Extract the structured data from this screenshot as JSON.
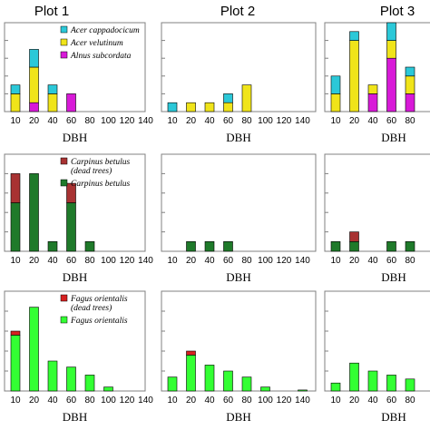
{
  "plot_titles": [
    "Plot 1",
    "Plot 2",
    "Plot 3"
  ],
  "colors": {
    "acer_cappadocicum": "#2bc8d8",
    "acer_velutinum": "#f0e41a",
    "alnus_subcordata": "#d81ad8",
    "carpinus_dead": "#a83232",
    "carpinus": "#1f7a2a",
    "fagus_dead": "#d62020",
    "fagus": "#33ff33"
  },
  "chart_data": [
    {
      "type": "bar",
      "stacked": true,
      "row": 0,
      "col": 0,
      "title": "Plot 1",
      "xlabel": "DBH",
      "categories": [
        "10",
        "20",
        "40",
        "60",
        "80",
        "100",
        "120",
        "140"
      ],
      "ylim": [
        0,
        10
      ],
      "legend": {
        "position": "top-right",
        "entries": [
          "Acer cappadocicum",
          "Acer velutinum",
          "Alnus subcordata"
        ]
      },
      "series": [
        {
          "name": "Alnus subcordata",
          "color_key": "alnus_subcordata",
          "values": [
            0,
            1,
            0,
            2,
            0,
            0,
            0,
            0
          ]
        },
        {
          "name": "Acer velutinum",
          "color_key": "acer_velutinum",
          "values": [
            2,
            4,
            2,
            0,
            0,
            0,
            0,
            0
          ]
        },
        {
          "name": "Acer cappadocicum",
          "color_key": "acer_cappadocicum",
          "values": [
            1,
            2,
            1,
            0,
            0,
            0,
            0,
            0
          ]
        }
      ]
    },
    {
      "type": "bar",
      "stacked": true,
      "row": 0,
      "col": 1,
      "title": "Plot 2",
      "xlabel": "DBH",
      "categories": [
        "10",
        "20",
        "40",
        "60",
        "80",
        "100",
        "120",
        "140"
      ],
      "ylim": [
        0,
        10
      ],
      "series": [
        {
          "name": "Alnus subcordata",
          "color_key": "alnus_subcordata",
          "values": [
            0,
            0,
            0,
            0,
            0,
            0,
            0,
            0
          ]
        },
        {
          "name": "Acer velutinum",
          "color_key": "acer_velutinum",
          "values": [
            0,
            1,
            1,
            1,
            3,
            0,
            0,
            0
          ]
        },
        {
          "name": "Acer cappadocicum",
          "color_key": "acer_cappadocicum",
          "values": [
            1,
            0,
            0,
            1,
            0,
            0,
            0,
            0
          ]
        }
      ]
    },
    {
      "type": "bar",
      "stacked": true,
      "row": 0,
      "col": 2,
      "title": "Plot 3",
      "xlabel": "DBH",
      "categories": [
        "10",
        "20",
        "40",
        "60",
        "80"
      ],
      "ylim": [
        0,
        10
      ],
      "series": [
        {
          "name": "Alnus subcordata",
          "color_key": "alnus_subcordata",
          "values": [
            0,
            0,
            2,
            6,
            2
          ]
        },
        {
          "name": "Acer velutinum",
          "color_key": "acer_velutinum",
          "values": [
            2,
            8,
            1,
            2,
            2
          ]
        },
        {
          "name": "Acer cappadocicum",
          "color_key": "acer_cappadocicum",
          "values": [
            2,
            1,
            0,
            2,
            1
          ]
        }
      ]
    },
    {
      "type": "bar",
      "stacked": true,
      "row": 1,
      "col": 0,
      "xlabel": "DBH",
      "categories": [
        "10",
        "20",
        "40",
        "60",
        "80",
        "100",
        "120",
        "140"
      ],
      "ylim": [
        0,
        10
      ],
      "legend": {
        "position": "top-right",
        "entries": [
          "Carpinus betulus (dead trees)",
          "Carpinus betulus"
        ]
      },
      "series": [
        {
          "name": "Carpinus betulus",
          "color_key": "carpinus",
          "values": [
            5,
            8,
            1,
            5,
            1,
            0,
            0,
            0
          ]
        },
        {
          "name": "Carpinus betulus (dead trees)",
          "color_key": "carpinus_dead",
          "values": [
            3,
            0,
            0,
            2,
            0,
            0,
            0,
            0
          ]
        }
      ]
    },
    {
      "type": "bar",
      "stacked": true,
      "row": 1,
      "col": 1,
      "xlabel": "DBH",
      "categories": [
        "10",
        "20",
        "40",
        "60",
        "80",
        "100",
        "120",
        "140"
      ],
      "ylim": [
        0,
        10
      ],
      "series": [
        {
          "name": "Carpinus betulus",
          "color_key": "carpinus",
          "values": [
            0,
            1,
            1,
            1,
            0,
            0,
            0,
            0
          ]
        },
        {
          "name": "Carpinus betulus (dead trees)",
          "color_key": "carpinus_dead",
          "values": [
            0,
            0,
            0,
            0,
            0,
            0,
            0,
            0
          ]
        }
      ]
    },
    {
      "type": "bar",
      "stacked": true,
      "row": 1,
      "col": 2,
      "xlabel": "DBH",
      "categories": [
        "10",
        "20",
        "40",
        "60",
        "80"
      ],
      "ylim": [
        0,
        10
      ],
      "series": [
        {
          "name": "Carpinus betulus",
          "color_key": "carpinus",
          "values": [
            1,
            1,
            0,
            1,
            1
          ]
        },
        {
          "name": "Carpinus betulus (dead trees)",
          "color_key": "carpinus_dead",
          "values": [
            0,
            1,
            0,
            0,
            0
          ]
        }
      ]
    },
    {
      "type": "bar",
      "stacked": true,
      "row": 2,
      "col": 0,
      "xlabel": "DBH",
      "categories": [
        "10",
        "20",
        "40",
        "60",
        "80",
        "100",
        "120",
        "140"
      ],
      "ylim": [
        0,
        50
      ],
      "legend": {
        "position": "top-right",
        "entries": [
          "Fagus orientalis (dead trees)",
          "Fagus orientalis"
        ]
      },
      "series": [
        {
          "name": "Fagus orientalis",
          "color_key": "fagus",
          "values": [
            28,
            42,
            15,
            12,
            8,
            2,
            0,
            0
          ]
        },
        {
          "name": "Fagus orientalis (dead trees)",
          "color_key": "fagus_dead",
          "values": [
            2,
            0,
            0,
            0,
            0,
            0,
            0,
            0
          ]
        }
      ]
    },
    {
      "type": "bar",
      "stacked": true,
      "row": 2,
      "col": 1,
      "xlabel": "DBH",
      "categories": [
        "10",
        "20",
        "40",
        "60",
        "80",
        "100",
        "120",
        "140"
      ],
      "ylim": [
        0,
        50
      ],
      "series": [
        {
          "name": "Fagus orientalis",
          "color_key": "fagus",
          "values": [
            7,
            18,
            13,
            10,
            7,
            2,
            0,
            0.5
          ]
        },
        {
          "name": "Fagus orientalis (dead trees)",
          "color_key": "fagus_dead",
          "values": [
            0,
            2,
            0,
            0,
            0,
            0,
            0,
            0
          ]
        }
      ]
    },
    {
      "type": "bar",
      "stacked": true,
      "row": 2,
      "col": 2,
      "xlabel": "DBH",
      "categories": [
        "10",
        "20",
        "40",
        "60",
        "80"
      ],
      "ylim": [
        0,
        50
      ],
      "series": [
        {
          "name": "Fagus orientalis",
          "color_key": "fagus",
          "values": [
            4,
            14,
            10,
            8,
            6
          ]
        },
        {
          "name": "Fagus orientalis (dead trees)",
          "color_key": "fagus_dead",
          "values": [
            0,
            0,
            0,
            0,
            0
          ]
        }
      ]
    }
  ]
}
